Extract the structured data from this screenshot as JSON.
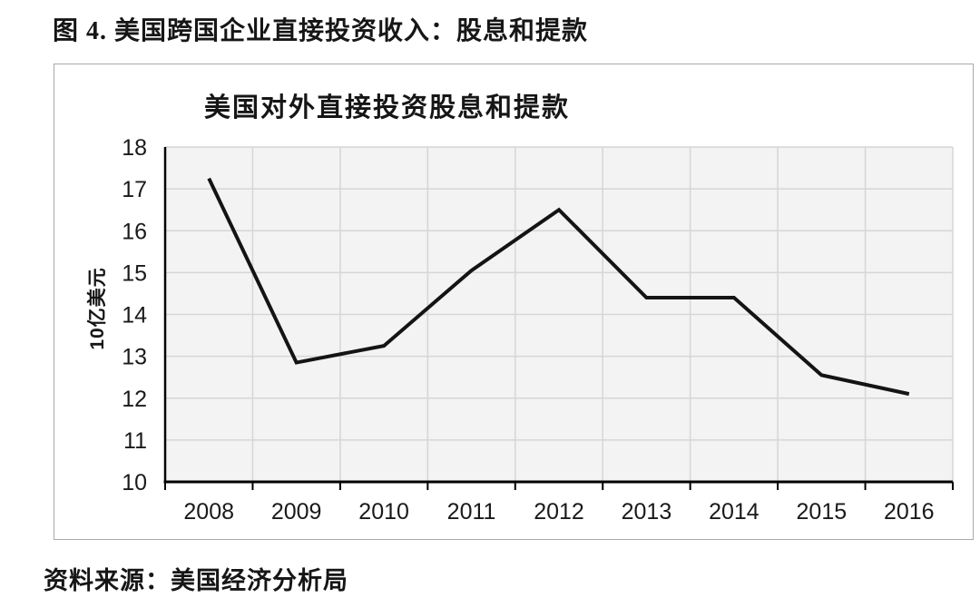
{
  "figure": {
    "title": "图 4. 美国跨国企业直接投资收入：股息和提款"
  },
  "source": {
    "text": "资料来源：美国经济分析局"
  },
  "colors": {
    "line": "#141414",
    "plot_bg": "#f3f3f3",
    "grid": "#d6d6d6",
    "axis": "#000000",
    "frame_border": "#a9a9a9",
    "tick_text": "#1a1a1a"
  },
  "chart_data": {
    "type": "line",
    "categories": [
      "2008",
      "2009",
      "2010",
      "2011",
      "2012",
      "2013",
      "2014",
      "2015",
      "2016"
    ],
    "values": [
      17.25,
      12.85,
      13.25,
      15.05,
      16.5,
      14.4,
      14.4,
      12.55,
      12.1
    ],
    "series_name": "美国对外直接投资股息和提款",
    "title": "美国对外直接投资股息和提款",
    "xlabel": "",
    "ylabel": "10亿美元",
    "ylim": [
      10,
      18
    ],
    "ytick_step": 1,
    "grid": true,
    "legend": false
  }
}
